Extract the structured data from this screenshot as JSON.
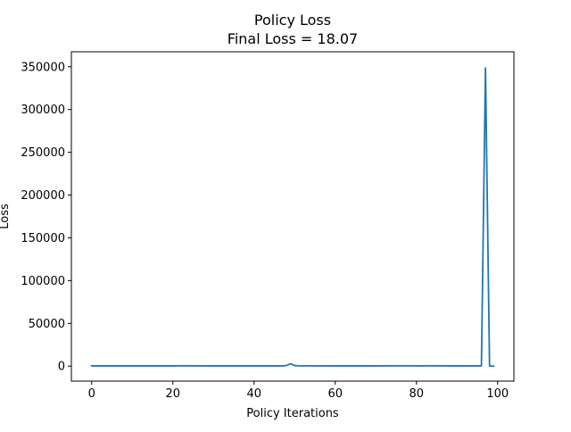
{
  "chart_data": {
    "type": "line",
    "title": "Policy Loss",
    "subtitle": "Final Loss = 18.07",
    "xlabel": "Policy Iterations",
    "ylabel": "Loss",
    "xlim": [
      -5,
      104
    ],
    "ylim": [
      -17500,
      367500
    ],
    "xticks": [
      0,
      20,
      40,
      60,
      80,
      100
    ],
    "yticks": [
      0,
      50000,
      100000,
      150000,
      200000,
      250000,
      300000,
      350000
    ],
    "grid": false,
    "series": [
      {
        "color": "#1f77b4",
        "x": [
          0,
          10,
          20,
          22,
          30,
          40,
          47,
          48,
          49,
          50,
          51,
          60,
          70,
          78,
          80,
          83,
          90,
          95,
          96,
          97,
          98,
          99
        ],
        "y": [
          300,
          300,
          300,
          450,
          300,
          300,
          300,
          800,
          2800,
          700,
          350,
          300,
          300,
          500,
          300,
          450,
          300,
          300,
          400,
          348500,
          200,
          18.07
        ]
      }
    ]
  }
}
